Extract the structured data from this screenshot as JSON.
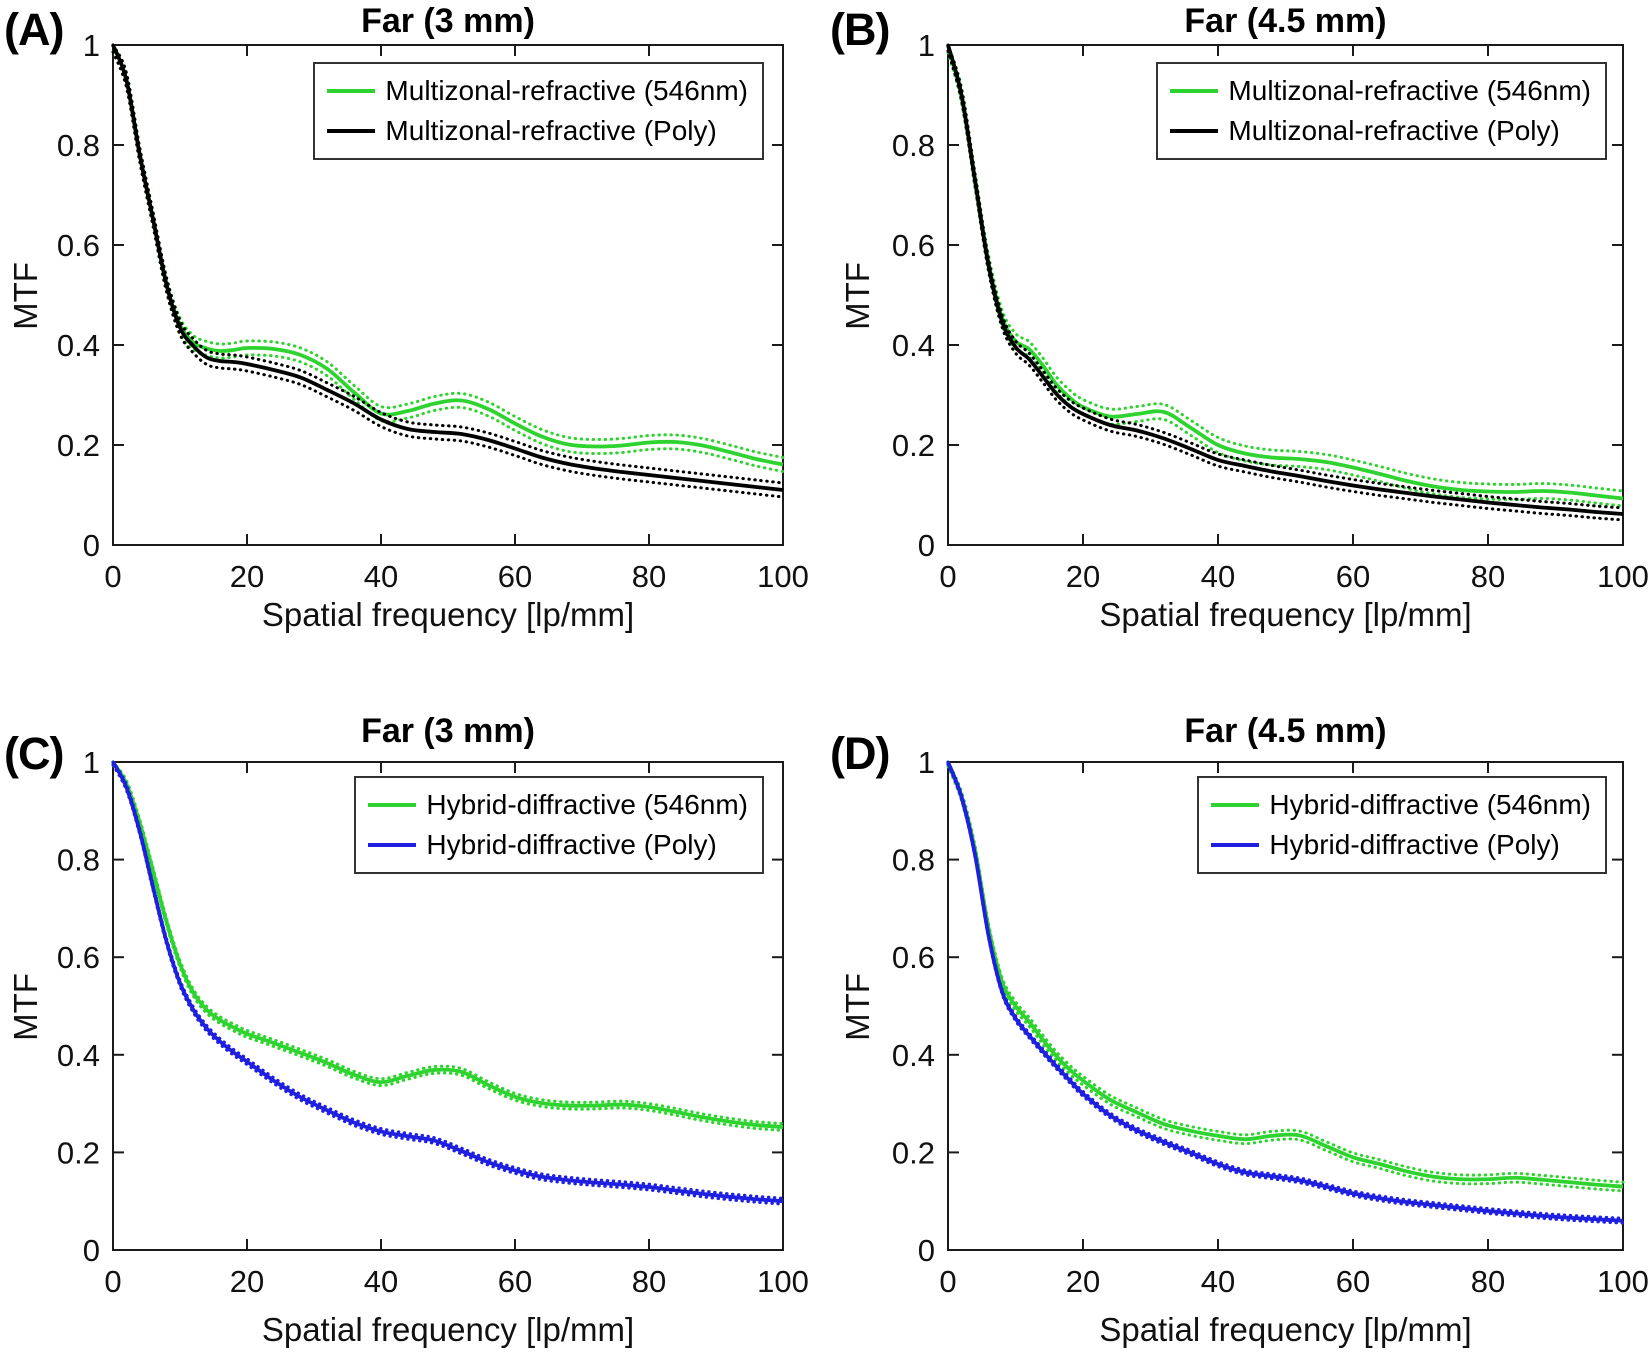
{
  "figure": {
    "background": "#ffffff",
    "axis_color": "#1a1a1a",
    "text_color": "#111111",
    "accent_green": "#2fd32f",
    "accent_blue": "#1f1fe0",
    "accent_black": "#000000"
  },
  "chart_data": [
    {
      "panel_label": "(A)",
      "type": "line",
      "title": "Far (3 mm)",
      "xlabel": "Spatial frequency [lp/mm]",
      "ylabel": "MTF",
      "xlim": [
        0,
        100
      ],
      "ylim": [
        0,
        1
      ],
      "xticks": [
        0,
        20,
        40,
        60,
        80,
        100
      ],
      "yticks": [
        0,
        0.2,
        0.4,
        0.6,
        0.8,
        1
      ],
      "grid": false,
      "legend_position": "top-right",
      "x": [
        0,
        2,
        4,
        6,
        8,
        10,
        12,
        14,
        16,
        18,
        20,
        24,
        28,
        32,
        36,
        40,
        44,
        48,
        52,
        56,
        60,
        64,
        68,
        72,
        76,
        80,
        84,
        88,
        92,
        96,
        100
      ],
      "series": [
        {
          "name": "Multizonal-refractive (546nm)",
          "color": "#2fd32f",
          "line_style": "solid",
          "band_style": "dotted",
          "band": 0.014,
          "values": [
            1.0,
            0.93,
            0.78,
            0.65,
            0.52,
            0.44,
            0.405,
            0.393,
            0.388,
            0.39,
            0.394,
            0.392,
            0.38,
            0.352,
            0.305,
            0.263,
            0.268,
            0.283,
            0.289,
            0.272,
            0.243,
            0.217,
            0.201,
            0.197,
            0.199,
            0.205,
            0.206,
            0.199,
            0.186,
            0.172,
            0.161
          ]
        },
        {
          "name": "Multizonal-refractive (Poly)",
          "color": "#000000",
          "line_style": "solid",
          "band_style": "dotted",
          "band": 0.014,
          "values": [
            1.0,
            0.93,
            0.78,
            0.65,
            0.52,
            0.435,
            0.398,
            0.375,
            0.368,
            0.366,
            0.362,
            0.35,
            0.335,
            0.31,
            0.283,
            0.251,
            0.232,
            0.226,
            0.222,
            0.21,
            0.193,
            0.175,
            0.162,
            0.153,
            0.146,
            0.14,
            0.134,
            0.128,
            0.122,
            0.116,
            0.11
          ]
        }
      ]
    },
    {
      "panel_label": "(B)",
      "type": "line",
      "title": "Far (4.5 mm)",
      "xlabel": "Spatial frequency [lp/mm]",
      "ylabel": "MTF",
      "xlim": [
        0,
        100
      ],
      "ylim": [
        0,
        1
      ],
      "xticks": [
        0,
        20,
        40,
        60,
        80,
        100
      ],
      "yticks": [
        0,
        0.2,
        0.4,
        0.6,
        0.8,
        1
      ],
      "grid": false,
      "legend_position": "top-right",
      "x": [
        0,
        2,
        4,
        6,
        8,
        10,
        12,
        14,
        16,
        18,
        20,
        24,
        28,
        32,
        36,
        40,
        44,
        48,
        52,
        56,
        60,
        64,
        68,
        72,
        76,
        80,
        84,
        88,
        92,
        96,
        100
      ],
      "series": [
        {
          "name": "Multizonal-refractive (546nm)",
          "color": "#2fd32f",
          "line_style": "solid",
          "band_style": "dotted",
          "band": 0.015,
          "values": [
            1.0,
            0.9,
            0.73,
            0.565,
            0.455,
            0.408,
            0.392,
            0.36,
            0.322,
            0.295,
            0.276,
            0.257,
            0.262,
            0.266,
            0.234,
            0.2,
            0.183,
            0.175,
            0.172,
            0.166,
            0.155,
            0.142,
            0.128,
            0.117,
            0.11,
            0.107,
            0.106,
            0.108,
            0.105,
            0.099,
            0.093
          ]
        },
        {
          "name": "Multizonal-refractive (Poly)",
          "color": "#000000",
          "line_style": "solid",
          "band_style": "dotted",
          "band": 0.012,
          "values": [
            1.0,
            0.9,
            0.73,
            0.56,
            0.448,
            0.396,
            0.372,
            0.338,
            0.303,
            0.278,
            0.262,
            0.24,
            0.229,
            0.213,
            0.192,
            0.17,
            0.158,
            0.147,
            0.138,
            0.128,
            0.119,
            0.111,
            0.104,
            0.097,
            0.091,
            0.085,
            0.08,
            0.075,
            0.071,
            0.066,
            0.062
          ]
        }
      ]
    },
    {
      "panel_label": "(C)",
      "type": "line",
      "title": "Far (3 mm)",
      "xlabel": "Spatial frequency [lp/mm]",
      "ylabel": "MTF",
      "xlim": [
        0,
        100
      ],
      "ylim": [
        0,
        1
      ],
      "xticks": [
        0,
        20,
        40,
        60,
        80,
        100
      ],
      "yticks": [
        0,
        0.2,
        0.4,
        0.6,
        0.8,
        1
      ],
      "grid": false,
      "legend_position": "top-right",
      "x": [
        0,
        2,
        4,
        6,
        8,
        10,
        12,
        14,
        16,
        18,
        20,
        24,
        28,
        32,
        36,
        40,
        44,
        48,
        52,
        56,
        60,
        64,
        68,
        72,
        76,
        80,
        84,
        88,
        92,
        96,
        100
      ],
      "series": [
        {
          "name": "Hybrid-diffractive (546nm)",
          "color": "#2fd32f",
          "line_style": "solid",
          "band_style": "dotted",
          "band": 0.007,
          "values": [
            1.0,
            0.955,
            0.875,
            0.775,
            0.672,
            0.586,
            0.527,
            0.492,
            0.471,
            0.456,
            0.443,
            0.424,
            0.404,
            0.383,
            0.359,
            0.344,
            0.357,
            0.369,
            0.365,
            0.338,
            0.314,
            0.301,
            0.296,
            0.296,
            0.298,
            0.293,
            0.283,
            0.272,
            0.263,
            0.256,
            0.252
          ]
        },
        {
          "name": "Hybrid-diffractive (Poly)",
          "color": "#1f1fe0",
          "line_style": "solid",
          "band_style": "dotted",
          "band": 0.006,
          "values": [
            1.0,
            0.948,
            0.857,
            0.742,
            0.632,
            0.547,
            0.492,
            0.454,
            0.427,
            0.405,
            0.386,
            0.347,
            0.313,
            0.286,
            0.261,
            0.243,
            0.233,
            0.224,
            0.203,
            0.18,
            0.163,
            0.15,
            0.143,
            0.138,
            0.134,
            0.129,
            0.122,
            0.115,
            0.109,
            0.104,
            0.1
          ]
        }
      ]
    },
    {
      "panel_label": "(D)",
      "type": "line",
      "title": "Far (4.5 mm)",
      "xlabel": "Spatial frequency [lp/mm]",
      "ylabel": "MTF",
      "xlim": [
        0,
        100
      ],
      "ylim": [
        0,
        1
      ],
      "xticks": [
        0,
        20,
        40,
        60,
        80,
        100
      ],
      "yticks": [
        0,
        0.2,
        0.4,
        0.6,
        0.8,
        1
      ],
      "grid": false,
      "legend_position": "top-right",
      "x": [
        0,
        2,
        4,
        6,
        8,
        10,
        12,
        14,
        16,
        18,
        20,
        24,
        28,
        32,
        36,
        40,
        44,
        48,
        52,
        56,
        60,
        64,
        68,
        72,
        76,
        80,
        84,
        88,
        92,
        96,
        100
      ],
      "series": [
        {
          "name": "Hybrid-diffractive (546nm)",
          "color": "#2fd32f",
          "line_style": "solid",
          "band_style": "dotted",
          "band": 0.009,
          "values": [
            1.0,
            0.93,
            0.82,
            0.66,
            0.55,
            0.5,
            0.468,
            0.432,
            0.398,
            0.37,
            0.347,
            0.308,
            0.282,
            0.258,
            0.244,
            0.234,
            0.227,
            0.234,
            0.235,
            0.213,
            0.19,
            0.176,
            0.161,
            0.15,
            0.145,
            0.145,
            0.148,
            0.144,
            0.139,
            0.134,
            0.13
          ]
        },
        {
          "name": "Hybrid-diffractive (Poly)",
          "color": "#1f1fe0",
          "line_style": "solid",
          "band_style": "dotted",
          "band": 0.005,
          "values": [
            1.0,
            0.928,
            0.81,
            0.645,
            0.53,
            0.475,
            0.44,
            0.408,
            0.377,
            0.348,
            0.32,
            0.276,
            0.245,
            0.221,
            0.199,
            0.176,
            0.159,
            0.151,
            0.143,
            0.13,
            0.116,
            0.106,
            0.098,
            0.092,
            0.086,
            0.08,
            0.075,
            0.07,
            0.066,
            0.063,
            0.06
          ]
        }
      ]
    }
  ]
}
